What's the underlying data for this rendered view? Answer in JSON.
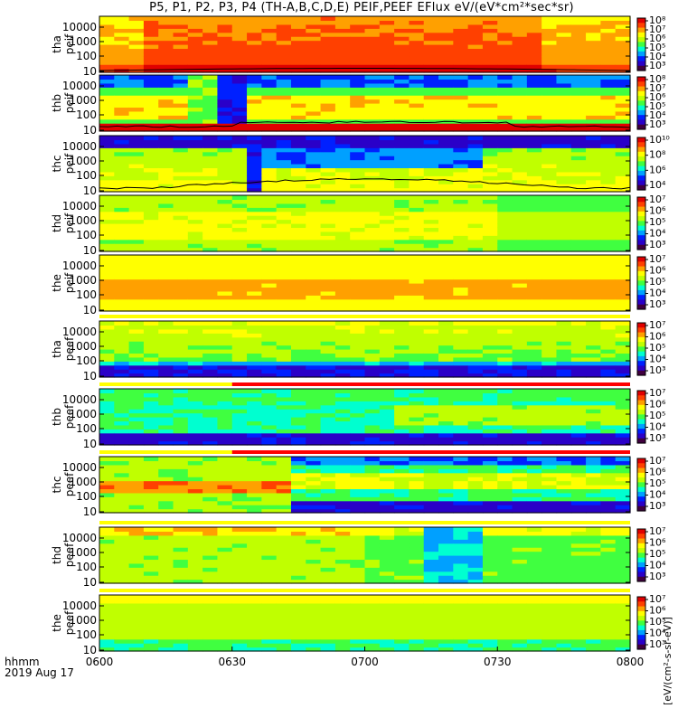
{
  "title": "P5, P1, P2, P3, P4 (TH-A,B,C,D,E) PEIF,PEEF EFlux eV/(eV*cm²*sec*sr)",
  "colorbar_title": "[eV/(cm²-s-sr-eV)]",
  "time_axis": {
    "label_top": "hhmm",
    "label_bottom": "2019 Aug 17",
    "ticks": [
      "0600",
      "0630",
      "0700",
      "0730",
      "0800"
    ]
  },
  "colormap": [
    "#40003f",
    "#2a00c8",
    "#0020ff",
    "#00a0ff",
    "#00ffd0",
    "#40ff40",
    "#c0ff00",
    "#ffff00",
    "#ffa000",
    "#ff4000",
    "#e00000"
  ],
  "chart_data": [
    {
      "type": "heatmap",
      "probe": "tha",
      "species": "peif",
      "y_label": [
        "tha",
        "peif"
      ],
      "y_ticks": [
        "10000",
        "1000",
        "100",
        "10"
      ],
      "y_scale": "log",
      "ylim": [
        10,
        20000
      ],
      "x_range_hhmm": [
        "0600",
        "0800"
      ],
      "colorbar_ticks": [
        "10⁸",
        "10⁷",
        "10⁶",
        "10⁵",
        "10⁴",
        "10³"
      ],
      "has_line": true
    },
    {
      "type": "heatmap",
      "probe": "thb",
      "species": "peif",
      "y_label": [
        "thb",
        "peif"
      ],
      "y_ticks": [
        "10000",
        "1000",
        "100",
        "10"
      ],
      "y_scale": "log",
      "ylim": [
        10,
        20000
      ],
      "x_range_hhmm": [
        "0600",
        "0800"
      ],
      "colorbar_ticks": [
        "10⁸",
        "10⁷",
        "10⁶",
        "10⁵",
        "10⁴",
        "10³"
      ],
      "has_line": true
    },
    {
      "type": "heatmap",
      "probe": "thc",
      "species": "peif",
      "y_label": [
        "thc",
        "peif"
      ],
      "y_ticks": [
        "10000",
        "1000",
        "100",
        "10"
      ],
      "y_scale": "log",
      "ylim": [
        10,
        20000
      ],
      "x_range_hhmm": [
        "0600",
        "0800"
      ],
      "colorbar_ticks": [
        "10¹⁰",
        "10⁸",
        "10⁶",
        "10⁴"
      ],
      "has_line": true
    },
    {
      "type": "heatmap",
      "probe": "thd",
      "species": "peif",
      "y_label": [
        "thd",
        "peif"
      ],
      "y_ticks": [
        "10000",
        "1000",
        "100",
        "10"
      ],
      "y_scale": "log",
      "ylim": [
        10,
        20000
      ],
      "x_range_hhmm": [
        "0600",
        "0800"
      ],
      "colorbar_ticks": [
        "10⁷",
        "10⁶",
        "10⁵",
        "10⁴",
        "10³"
      ],
      "has_line": false
    },
    {
      "type": "heatmap",
      "probe": "the",
      "species": "peif",
      "y_label": [
        "the",
        "peif"
      ],
      "y_ticks": [
        "10000",
        "1000",
        "100",
        "10"
      ],
      "y_scale": "log",
      "ylim": [
        10,
        20000
      ],
      "x_range_hhmm": [
        "0600",
        "0800"
      ],
      "colorbar_ticks": [
        "10⁷",
        "10⁶",
        "10⁵",
        "10⁴",
        "10³"
      ],
      "has_line": false
    },
    {
      "type": "heatmap",
      "probe": "tha",
      "species": "peef",
      "y_label": [
        "tha",
        "peef"
      ],
      "y_ticks": [
        "10000",
        "1000",
        "100",
        "10"
      ],
      "y_scale": "log",
      "ylim": [
        10,
        20000
      ],
      "x_range_hhmm": [
        "0600",
        "0800"
      ],
      "colorbar_ticks": [
        "10⁷",
        "10⁶",
        "10⁵",
        "10⁴",
        "10³"
      ],
      "has_line": false
    },
    {
      "type": "heatmap",
      "probe": "thb",
      "species": "peef",
      "y_label": [
        "thb",
        "peef"
      ],
      "y_ticks": [
        "10000",
        "1000",
        "100",
        "10"
      ],
      "y_scale": "log",
      "ylim": [
        10,
        20000
      ],
      "x_range_hhmm": [
        "0600",
        "0800"
      ],
      "colorbar_ticks": [
        "10⁷",
        "10⁶",
        "10⁵",
        "10⁴",
        "10³"
      ],
      "has_line": false
    },
    {
      "type": "heatmap",
      "probe": "thc",
      "species": "peef",
      "y_label": [
        "thc",
        "peef"
      ],
      "y_ticks": [
        "10000",
        "1000",
        "100",
        "10"
      ],
      "y_scale": "log",
      "ylim": [
        10,
        20000
      ],
      "x_range_hhmm": [
        "0600",
        "0800"
      ],
      "colorbar_ticks": [
        "10⁷",
        "10⁶",
        "10⁵",
        "10⁴",
        "10³"
      ],
      "has_line": false
    },
    {
      "type": "heatmap",
      "probe": "thd",
      "species": "peef",
      "y_label": [
        "thd",
        "peef"
      ],
      "y_ticks": [
        "10000",
        "1000",
        "100",
        "10"
      ],
      "y_scale": "log",
      "ylim": [
        10,
        20000
      ],
      "x_range_hhmm": [
        "0600",
        "0800"
      ],
      "colorbar_ticks": [
        "10⁷",
        "10⁶",
        "10⁵",
        "10⁴",
        "10³"
      ],
      "has_line": false
    },
    {
      "type": "heatmap",
      "probe": "the",
      "species": "peef",
      "y_label": [
        "the",
        "peef"
      ],
      "y_ticks": [
        "10000",
        "1000",
        "100",
        "10"
      ],
      "y_scale": "log",
      "ylim": [
        10,
        20000
      ],
      "x_range_hhmm": [
        "0600",
        "0800"
      ],
      "colorbar_ticks": [
        "10⁷",
        "10⁶",
        "10⁵",
        "10⁴",
        "10³"
      ],
      "has_line": false
    }
  ]
}
